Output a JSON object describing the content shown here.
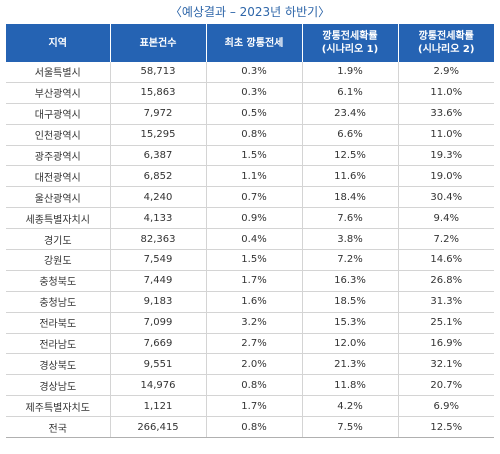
{
  "caption": "〈예상결과 – 2023년 하반기〉",
  "headers": {
    "region": "지역",
    "sample": "표본건수",
    "first": "최초 깡통전세",
    "s1_line1": "깡통전세확률",
    "s1_line2": "(시나리오 1)",
    "s2_line1": "깡통전세확률",
    "s2_line2": "(시나리오 2)"
  },
  "rows": [
    {
      "region": "서울특별시",
      "sample": "58,713",
      "first": "0.3%",
      "s1": "1.9%",
      "s2": "2.9%"
    },
    {
      "region": "부산광역시",
      "sample": "15,863",
      "first": "0.3%",
      "s1": "6.1%",
      "s2": "11.0%"
    },
    {
      "region": "대구광역시",
      "sample": "7,972",
      "first": "0.5%",
      "s1": "23.4%",
      "s2": "33.6%"
    },
    {
      "region": "인천광역시",
      "sample": "15,295",
      "first": "0.8%",
      "s1": "6.6%",
      "s2": "11.0%"
    },
    {
      "region": "광주광역시",
      "sample": "6,387",
      "first": "1.5%",
      "s1": "12.5%",
      "s2": "19.3%"
    },
    {
      "region": "대전광역시",
      "sample": "6,852",
      "first": "1.1%",
      "s1": "11.6%",
      "s2": "19.0%"
    },
    {
      "region": "울산광역시",
      "sample": "4,240",
      "first": "0.7%",
      "s1": "18.4%",
      "s2": "30.4%"
    },
    {
      "region": "세종특별자치시",
      "sample": "4,133",
      "first": "0.9%",
      "s1": "7.6%",
      "s2": "9.4%"
    },
    {
      "region": "경기도",
      "sample": "82,363",
      "first": "0.4%",
      "s1": "3.8%",
      "s2": "7.2%"
    },
    {
      "region": "강원도",
      "sample": "7,549",
      "first": "1.5%",
      "s1": "7.2%",
      "s2": "14.6%"
    },
    {
      "region": "충청북도",
      "sample": "7,449",
      "first": "1.7%",
      "s1": "16.3%",
      "s2": "26.8%"
    },
    {
      "region": "충청남도",
      "sample": "9,183",
      "first": "1.6%",
      "s1": "18.5%",
      "s2": "31.3%"
    },
    {
      "region": "전라북도",
      "sample": "7,099",
      "first": "3.2%",
      "s1": "15.3%",
      "s2": "25.1%"
    },
    {
      "region": "전라남도",
      "sample": "7,669",
      "first": "2.7%",
      "s1": "12.0%",
      "s2": "16.9%"
    },
    {
      "region": "경상북도",
      "sample": "9,551",
      "first": "2.0%",
      "s1": "21.3%",
      "s2": "32.1%"
    },
    {
      "region": "경상남도",
      "sample": "14,976",
      "first": "0.8%",
      "s1": "11.8%",
      "s2": "20.7%"
    },
    {
      "region": "제주특별자치도",
      "sample": "1,121",
      "first": "1.7%",
      "s1": "4.2%",
      "s2": "6.9%"
    },
    {
      "region": "전국",
      "sample": "266,415",
      "first": "0.8%",
      "s1": "7.5%",
      "s2": "12.5%"
    }
  ]
}
